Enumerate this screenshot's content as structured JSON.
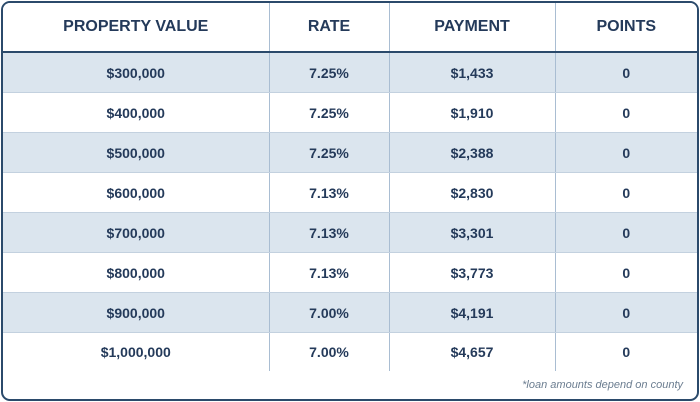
{
  "table": {
    "headers": [
      "PROPERTY VALUE",
      "RATE",
      "PAYMENT",
      "POINTS"
    ],
    "rows": [
      [
        "$300,000",
        "7.25%",
        "$1,433",
        "0"
      ],
      [
        "$400,000",
        "7.25%",
        "$1,910",
        "0"
      ],
      [
        "$500,000",
        "7.25%",
        "$2,388",
        "0"
      ],
      [
        "$600,000",
        "7.13%",
        "$2,830",
        "0"
      ],
      [
        "$700,000",
        "7.13%",
        "$3,301",
        "0"
      ],
      [
        "$800,000",
        "7.13%",
        "$3,773",
        "0"
      ],
      [
        "$900,000",
        "7.00%",
        "$4,191",
        "0"
      ],
      [
        "$1,000,000",
        "7.00%",
        "$4,657",
        "0"
      ]
    ]
  },
  "footnote": "*loan amounts depend on county",
  "colors": {
    "border": "#2b4a6b",
    "text": "#243a5a",
    "shaded_row": "#dbe5ee",
    "column_divider": "#a9bdd2",
    "footnote_text": "#6b7d90"
  }
}
